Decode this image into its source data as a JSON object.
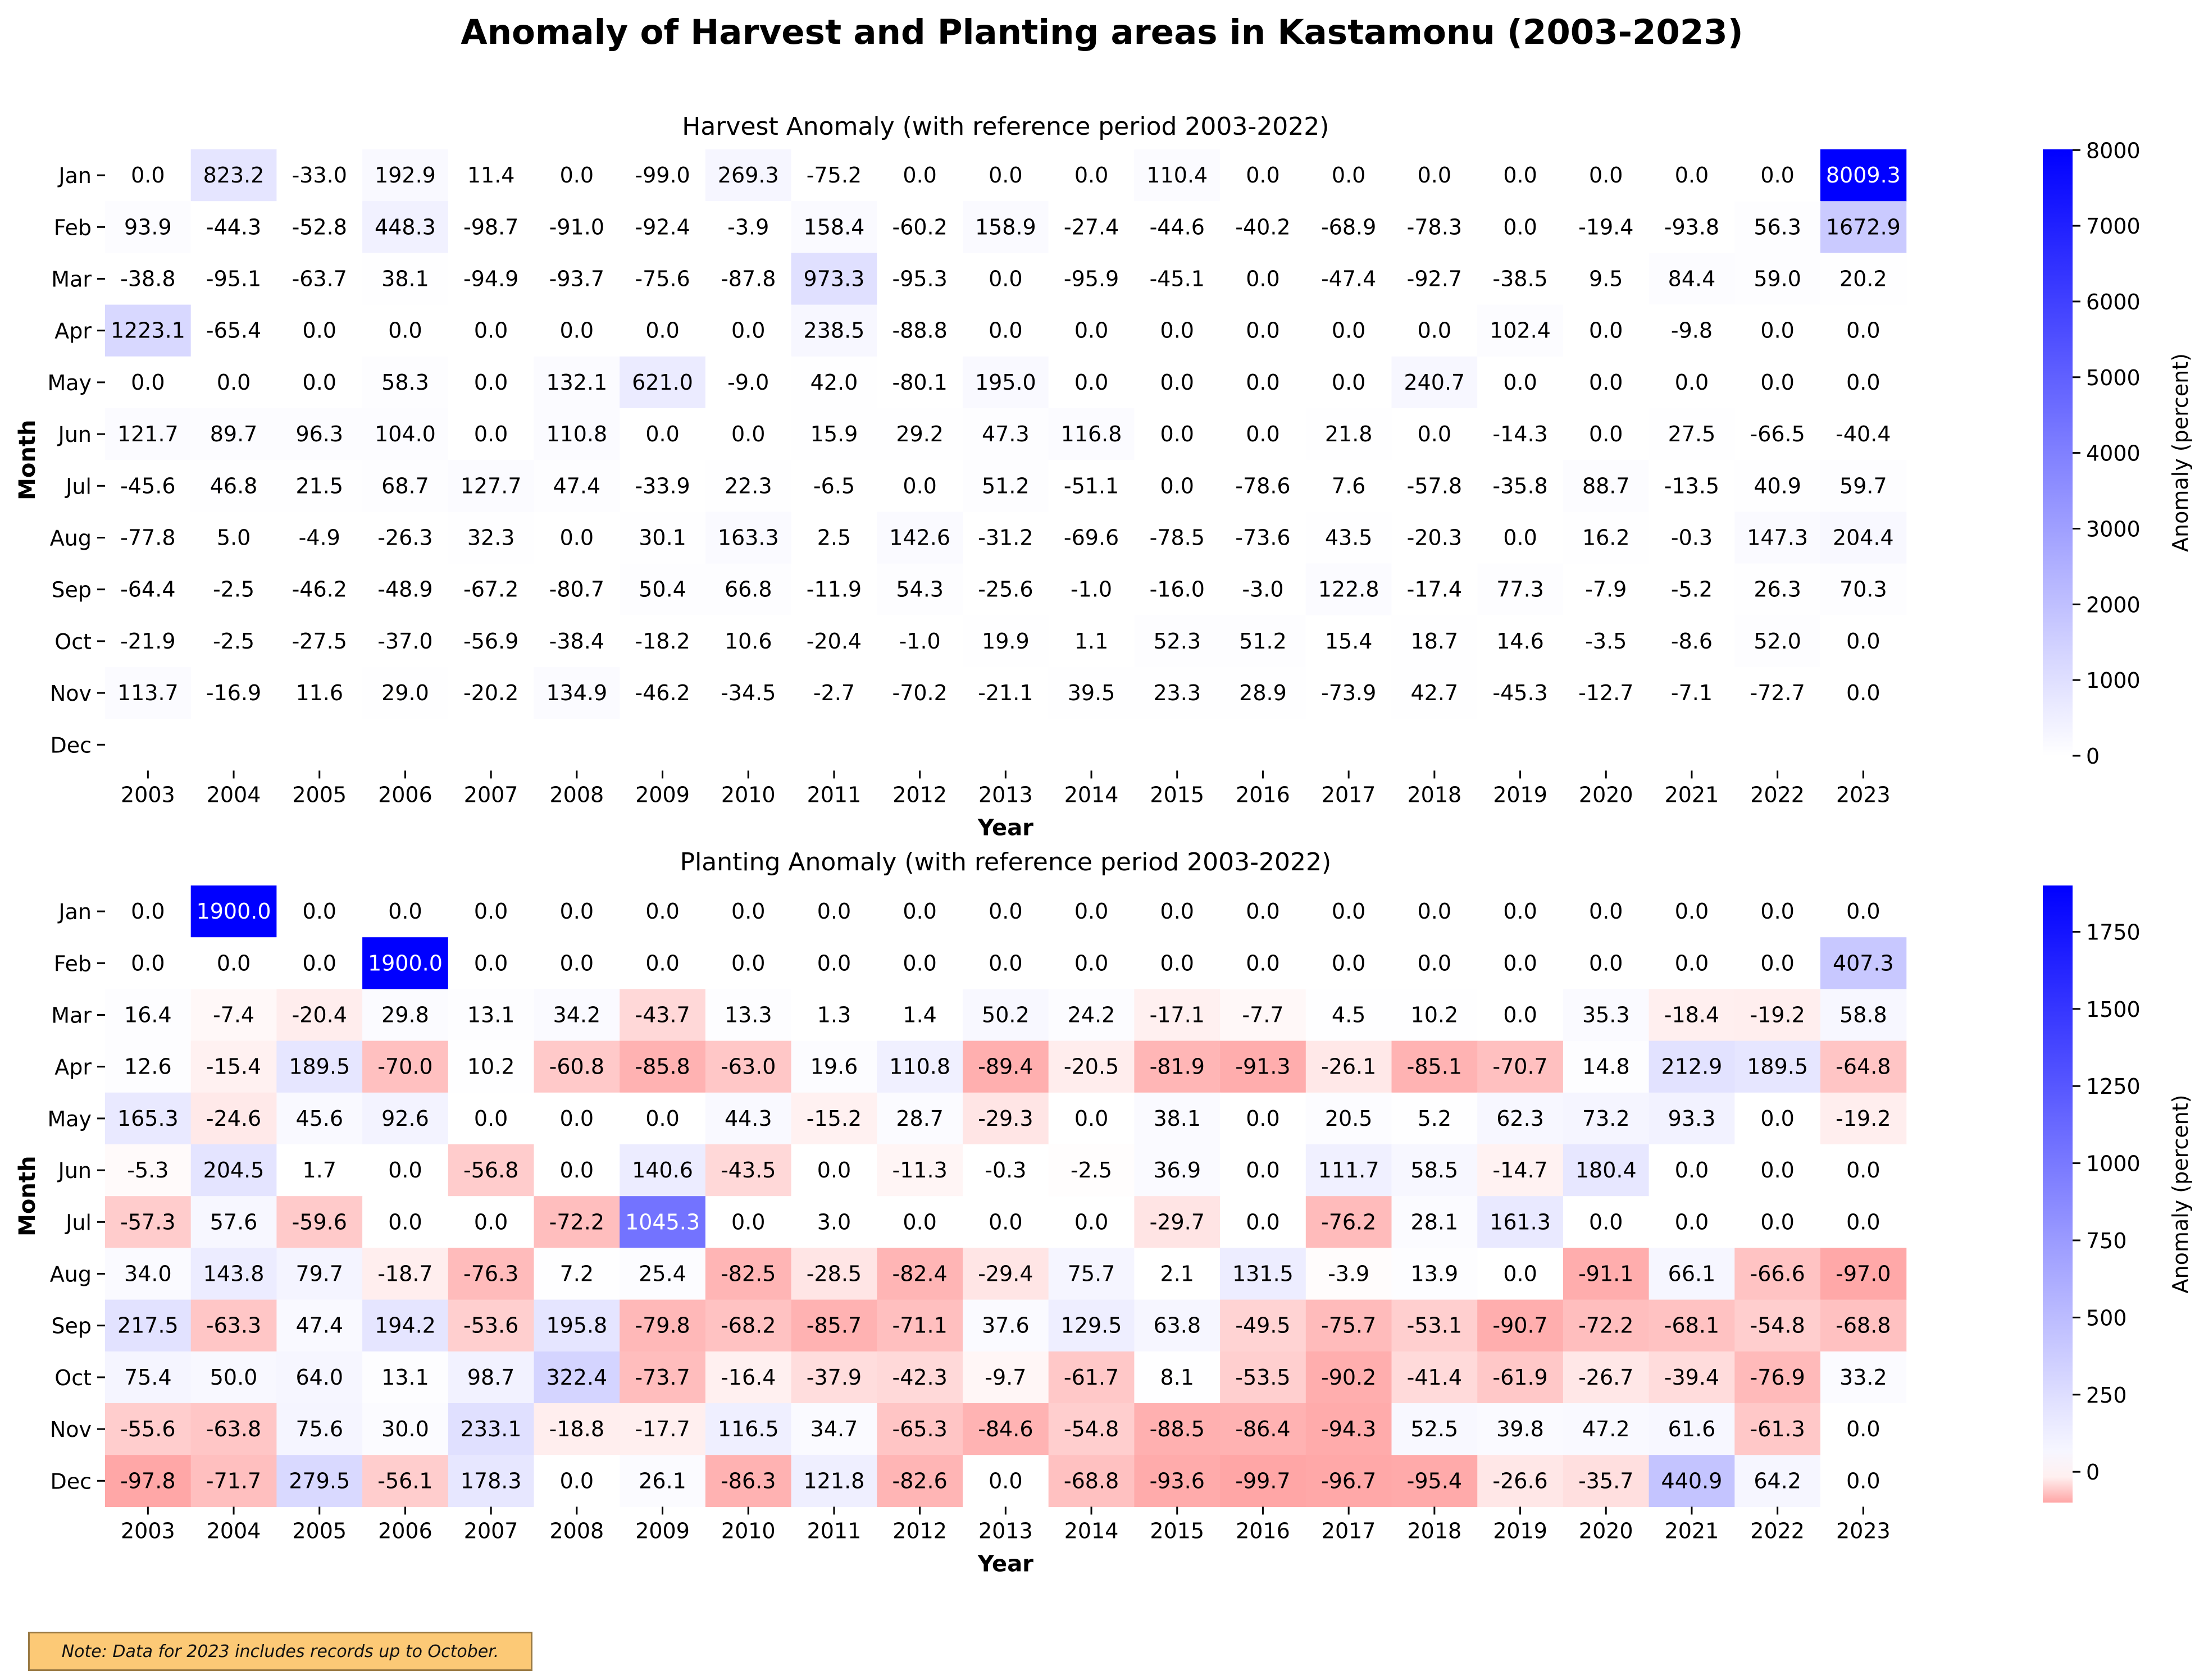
{
  "title": "Anomaly of Harvest and Planting areas in Kastamonu (2003-2023)",
  "note": "Note: Data for 2023 includes records up to October.",
  "chart_data": [
    {
      "type": "heatmap",
      "title": "Harvest Anomaly (with reference period 2003-2022)",
      "xlabel": "Year",
      "ylabel": "Month",
      "colorbar_label": "Anomaly (percent)",
      "colorbar_ticks": [
        0,
        1000,
        2000,
        3000,
        4000,
        5000,
        6000,
        7000,
        8000
      ],
      "colorbar_range": [
        0,
        8009.3
      ],
      "colors": {
        "negative": "#ff0000",
        "zero": "#ffffff",
        "positive": "#0000ff"
      },
      "x": [
        "2003",
        "2004",
        "2005",
        "2006",
        "2007",
        "2008",
        "2009",
        "2010",
        "2011",
        "2012",
        "2013",
        "2014",
        "2015",
        "2016",
        "2017",
        "2018",
        "2019",
        "2020",
        "2021",
        "2022",
        "2023"
      ],
      "y": [
        "Jan",
        "Feb",
        "Mar",
        "Apr",
        "May",
        "Jun",
        "Jul",
        "Aug",
        "Sep",
        "Oct",
        "Nov",
        "Dec"
      ],
      "values": [
        [
          0.0,
          823.2,
          -33.0,
          192.9,
          11.4,
          0.0,
          -99.0,
          269.3,
          -75.2,
          0.0,
          0.0,
          0.0,
          110.4,
          0.0,
          0.0,
          0.0,
          0.0,
          0.0,
          0.0,
          0.0,
          8009.3
        ],
        [
          93.9,
          -44.3,
          -52.8,
          448.3,
          -98.7,
          -91.0,
          -92.4,
          -3.9,
          158.4,
          -60.2,
          158.9,
          -27.4,
          -44.6,
          -40.2,
          -68.9,
          -78.3,
          0.0,
          -19.4,
          -93.8,
          56.3,
          1672.9
        ],
        [
          -38.8,
          -95.1,
          -63.7,
          38.1,
          -94.9,
          -93.7,
          -75.6,
          -87.8,
          973.3,
          -95.3,
          0.0,
          -95.9,
          -45.1,
          0.0,
          -47.4,
          -92.7,
          -38.5,
          9.5,
          84.4,
          59.0,
          20.2
        ],
        [
          1223.1,
          -65.4,
          0.0,
          0.0,
          0.0,
          0.0,
          0.0,
          0.0,
          238.5,
          -88.8,
          0.0,
          0.0,
          0.0,
          0.0,
          0.0,
          0.0,
          102.4,
          0.0,
          -9.8,
          0.0,
          0.0
        ],
        [
          0.0,
          0.0,
          0.0,
          58.3,
          0.0,
          132.1,
          621.0,
          -9.0,
          42.0,
          -80.1,
          195.0,
          0.0,
          0.0,
          0.0,
          0.0,
          240.7,
          0.0,
          0.0,
          0.0,
          0.0,
          0.0
        ],
        [
          121.7,
          89.7,
          96.3,
          104.0,
          0.0,
          110.8,
          0.0,
          0.0,
          15.9,
          29.2,
          47.3,
          116.8,
          0.0,
          0.0,
          21.8,
          0.0,
          -14.3,
          0.0,
          27.5,
          -66.5,
          -40.4
        ],
        [
          -45.6,
          46.8,
          21.5,
          68.7,
          127.7,
          47.4,
          -33.9,
          22.3,
          -6.5,
          0.0,
          51.2,
          -51.1,
          0.0,
          -78.6,
          7.6,
          -57.8,
          -35.8,
          88.7,
          -13.5,
          40.9,
          59.7
        ],
        [
          -77.8,
          5.0,
          -4.9,
          -26.3,
          32.3,
          0.0,
          30.1,
          163.3,
          2.5,
          142.6,
          -31.2,
          -69.6,
          -78.5,
          -73.6,
          43.5,
          -20.3,
          0.0,
          16.2,
          -0.3,
          147.3,
          204.4
        ],
        [
          -64.4,
          -2.5,
          -46.2,
          -48.9,
          -67.2,
          -80.7,
          50.4,
          66.8,
          -11.9,
          54.3,
          -25.6,
          -1.0,
          -16.0,
          -3.0,
          122.8,
          -17.4,
          77.3,
          -7.9,
          -5.2,
          26.3,
          70.3
        ],
        [
          -21.9,
          -2.5,
          -27.5,
          -37.0,
          -56.9,
          -38.4,
          -18.2,
          10.6,
          -20.4,
          -1.0,
          19.9,
          1.1,
          52.3,
          51.2,
          15.4,
          18.7,
          14.6,
          -3.5,
          -8.6,
          52.0,
          0.0
        ],
        [
          113.7,
          -16.9,
          11.6,
          29.0,
          -20.2,
          134.9,
          -46.2,
          -34.5,
          -2.7,
          -70.2,
          -21.1,
          39.5,
          23.3,
          28.9,
          -73.9,
          42.7,
          -45.3,
          -12.7,
          -7.1,
          -72.7,
          0.0
        ],
        [
          null,
          null,
          null,
          null,
          null,
          null,
          null,
          null,
          null,
          null,
          null,
          null,
          null,
          null,
          null,
          null,
          null,
          null,
          null,
          null,
          null
        ]
      ]
    },
    {
      "type": "heatmap",
      "title": "Planting Anomaly (with reference period 2003-2022)",
      "xlabel": "Year",
      "ylabel": "Month",
      "colorbar_label": "Anomaly (percent)",
      "colorbar_ticks": [
        0,
        250,
        500,
        750,
        1000,
        1250,
        1500,
        1750
      ],
      "colorbar_range": [
        -99.7,
        1900.0
      ],
      "colors": {
        "negative": "#ff0000",
        "zero": "#ffffff",
        "positive": "#0000ff"
      },
      "x": [
        "2003",
        "2004",
        "2005",
        "2006",
        "2007",
        "2008",
        "2009",
        "2010",
        "2011",
        "2012",
        "2013",
        "2014",
        "2015",
        "2016",
        "2017",
        "2018",
        "2019",
        "2020",
        "2021",
        "2022",
        "2023"
      ],
      "y": [
        "Jan",
        "Feb",
        "Mar",
        "Apr",
        "May",
        "Jun",
        "Jul",
        "Aug",
        "Sep",
        "Oct",
        "Nov",
        "Dec"
      ],
      "values": [
        [
          0.0,
          1900.0,
          0.0,
          0.0,
          0.0,
          0.0,
          0.0,
          0.0,
          0.0,
          0.0,
          0.0,
          0.0,
          0.0,
          0.0,
          0.0,
          0.0,
          0.0,
          0.0,
          0.0,
          0.0,
          0.0
        ],
        [
          0.0,
          0.0,
          0.0,
          1900.0,
          0.0,
          0.0,
          0.0,
          0.0,
          0.0,
          0.0,
          0.0,
          0.0,
          0.0,
          0.0,
          0.0,
          0.0,
          0.0,
          0.0,
          0.0,
          0.0,
          407.3
        ],
        [
          16.4,
          -7.4,
          -20.4,
          29.8,
          13.1,
          34.2,
          -43.7,
          13.3,
          1.3,
          1.4,
          50.2,
          24.2,
          -17.1,
          -7.7,
          4.5,
          10.2,
          0.0,
          35.3,
          -18.4,
          -19.2,
          58.8
        ],
        [
          12.6,
          -15.4,
          189.5,
          -70.0,
          10.2,
          -60.8,
          -85.8,
          -63.0,
          19.6,
          110.8,
          -89.4,
          -20.5,
          -81.9,
          -91.3,
          -26.1,
          -85.1,
          -70.7,
          14.8,
          212.9,
          189.5,
          -64.8
        ],
        [
          165.3,
          -24.6,
          45.6,
          92.6,
          0.0,
          0.0,
          0.0,
          44.3,
          -15.2,
          28.7,
          -29.3,
          0.0,
          38.1,
          0.0,
          20.5,
          5.2,
          62.3,
          73.2,
          93.3,
          0.0,
          -19.2
        ],
        [
          -5.3,
          204.5,
          1.7,
          0.0,
          -56.8,
          0.0,
          140.6,
          -43.5,
          0.0,
          -11.3,
          -0.3,
          -2.5,
          36.9,
          0.0,
          111.7,
          58.5,
          -14.7,
          180.4,
          0.0,
          0.0,
          0.0
        ],
        [
          -57.3,
          57.6,
          -59.6,
          0.0,
          0.0,
          -72.2,
          1045.3,
          0.0,
          3.0,
          0.0,
          0.0,
          0.0,
          -29.7,
          0.0,
          -76.2,
          28.1,
          161.3,
          0.0,
          0.0,
          0.0,
          0.0
        ],
        [
          34.0,
          143.8,
          79.7,
          -18.7,
          -76.3,
          7.2,
          25.4,
          -82.5,
          -28.5,
          -82.4,
          -29.4,
          75.7,
          2.1,
          131.5,
          -3.9,
          13.9,
          0.0,
          -91.1,
          66.1,
          -66.6,
          -97.0
        ],
        [
          217.5,
          -63.3,
          47.4,
          194.2,
          -53.6,
          195.8,
          -79.8,
          -68.2,
          -85.7,
          -71.1,
          37.6,
          129.5,
          63.8,
          -49.5,
          -75.7,
          -53.1,
          -90.7,
          -72.2,
          -68.1,
          -54.8,
          -68.8
        ],
        [
          75.4,
          50.0,
          64.0,
          13.1,
          98.7,
          322.4,
          -73.7,
          -16.4,
          -37.9,
          -42.3,
          -9.7,
          -61.7,
          8.1,
          -53.5,
          -90.2,
          -41.4,
          -61.9,
          -26.7,
          -39.4,
          -76.9,
          33.2
        ],
        [
          -55.6,
          -63.8,
          75.6,
          30.0,
          233.1,
          -18.8,
          -17.7,
          116.5,
          34.7,
          -65.3,
          -84.6,
          -54.8,
          -88.5,
          -86.4,
          -94.3,
          52.5,
          39.8,
          47.2,
          61.6,
          -61.3,
          0.0
        ],
        [
          -97.8,
          -71.7,
          279.5,
          -56.1,
          178.3,
          0.0,
          26.1,
          -86.3,
          121.8,
          -82.6,
          0.0,
          -68.8,
          -93.6,
          -99.7,
          -96.7,
          -95.4,
          -26.6,
          -35.7,
          440.9,
          64.2,
          0.0
        ]
      ]
    }
  ]
}
